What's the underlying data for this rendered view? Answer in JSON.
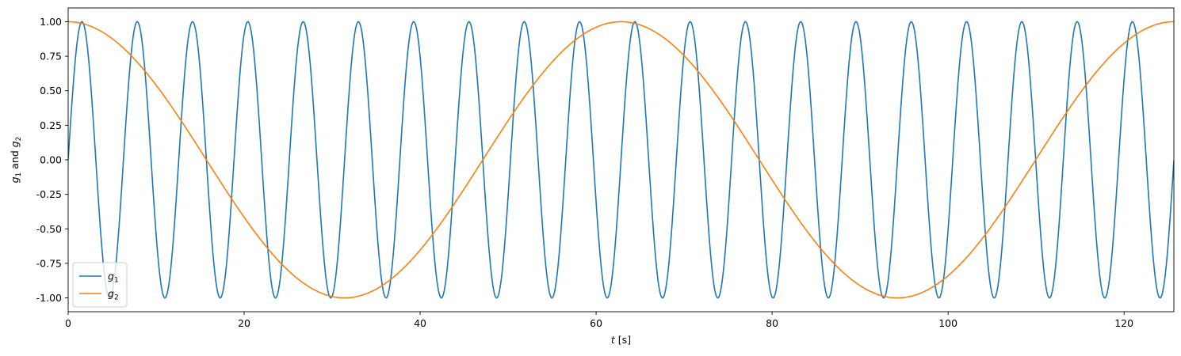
{
  "chart_data": {
    "type": "line",
    "title": "",
    "xlabel": "t [s]",
    "ylabel": "g1 and g2",
    "xlim": [
      0,
      125.66
    ],
    "ylim": [
      -1.1,
      1.1
    ],
    "xticks": [
      0,
      20,
      40,
      60,
      80,
      100,
      120
    ],
    "yticks": [
      -1.0,
      -0.75,
      -0.5,
      -0.25,
      0.0,
      0.25,
      0.5,
      0.75,
      1.0
    ],
    "grid": false,
    "legend_position": "lower-left",
    "series": [
      {
        "name": "g1",
        "function": "sin(t)",
        "color": "#1f77b4"
      },
      {
        "name": "g2",
        "function": "cos(t/10)",
        "color": "#ff7f0e"
      }
    ]
  }
}
